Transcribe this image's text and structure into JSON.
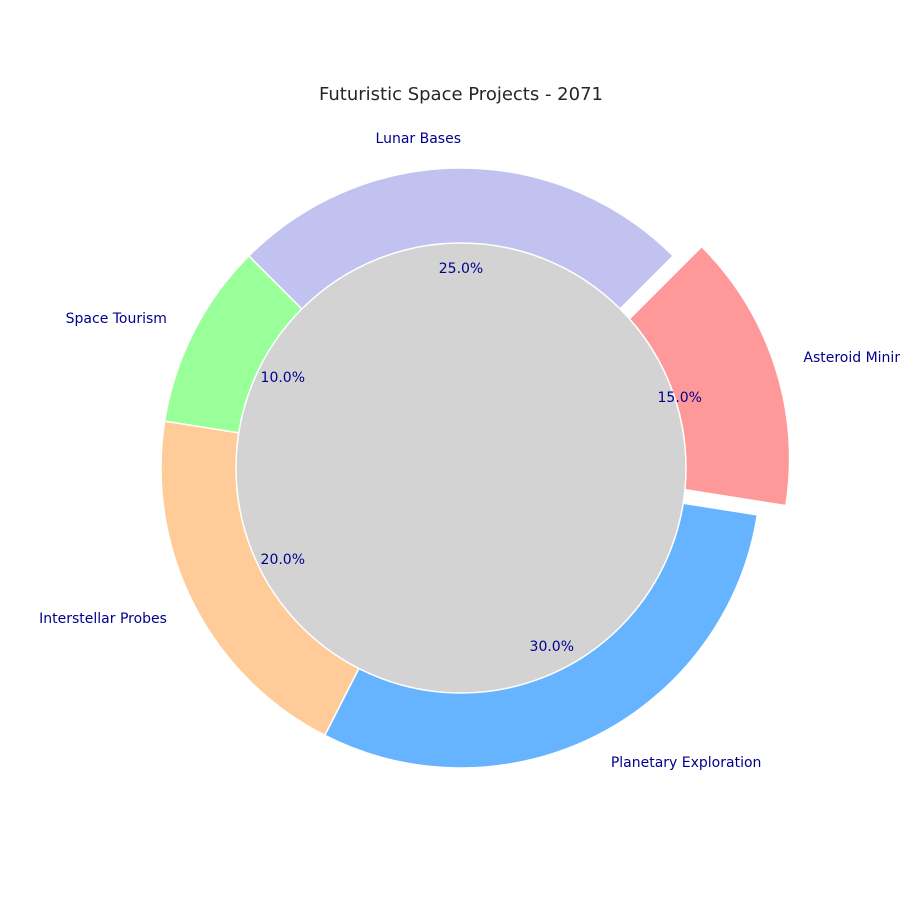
{
  "chart_data": {
    "type": "pie",
    "variant": "donut",
    "title": "Futuristic Space Projects - 2071",
    "categories": [
      "Asteroid Mining",
      "Planetary Exploration",
      "Interstellar Probes",
      "Space Tourism",
      "Lunar Bases"
    ],
    "values": [
      15.0,
      30.0,
      20.0,
      10.0,
      25.0
    ],
    "percent_labels": [
      "15.0%",
      "30.0%",
      "20.0%",
      "10.0%",
      "25.0%"
    ],
    "colors": [
      "#ff9999",
      "#66b3ff",
      "#ffcc99",
      "#99ff99",
      "#c2c2f0"
    ],
    "exploded": [
      true,
      false,
      false,
      false,
      false
    ],
    "center_color": "#d3d3d3",
    "label_color": "#00008b",
    "start_angle_deg": 45,
    "direction": "clockwise",
    "legend": "none"
  }
}
